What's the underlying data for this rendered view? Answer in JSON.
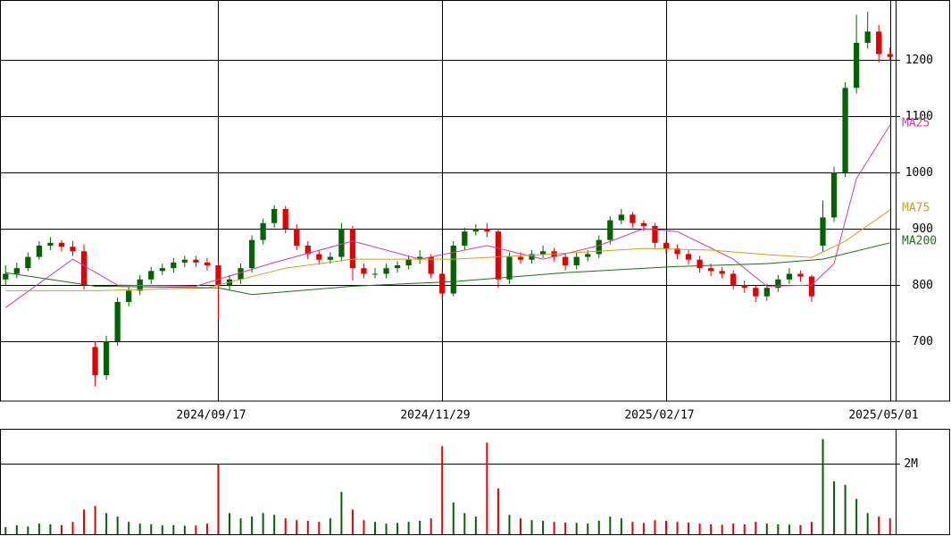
{
  "chart_data": [
    {
      "type": "candlestick",
      "xlim": [
        -0.5,
        79.5
      ],
      "xticks": [
        {
          "value": 19,
          "label": "2024/09/17"
        },
        {
          "value": 39,
          "label": "2024/11/29"
        },
        {
          "value": 59,
          "label": "2025/02/17"
        },
        {
          "value": 79,
          "label": "2025/05/01"
        }
      ],
      "ylim": [
        594,
        1306
      ],
      "yticks": [
        700,
        800,
        900,
        1000,
        1100,
        1200
      ],
      "grid": true,
      "up_color": "#006400",
      "down_color": "#e60000",
      "ohlc": [
        [
          810,
          835,
          800,
          820
        ],
        [
          820,
          840,
          812,
          830
        ],
        [
          830,
          858,
          825,
          850
        ],
        [
          850,
          878,
          845,
          870
        ],
        [
          870,
          885,
          862,
          875
        ],
        [
          875,
          880,
          860,
          868
        ],
        [
          868,
          878,
          852,
          860
        ],
        [
          860,
          872,
          792,
          800
        ],
        [
          690,
          700,
          620,
          640
        ],
        [
          640,
          710,
          632,
          700
        ],
        [
          700,
          778,
          692,
          770
        ],
        [
          770,
          798,
          762,
          790
        ],
        [
          790,
          818,
          782,
          810
        ],
        [
          810,
          832,
          802,
          825
        ],
        [
          825,
          838,
          818,
          830
        ],
        [
          830,
          848,
          822,
          840
        ],
        [
          840,
          852,
          832,
          845
        ],
        [
          845,
          852,
          832,
          840
        ],
        [
          840,
          848,
          826,
          835
        ],
        [
          835,
          842,
          740,
          800
        ],
        [
          800,
          818,
          790,
          810
        ],
        [
          810,
          838,
          802,
          830
        ],
        [
          830,
          888,
          822,
          880
        ],
        [
          880,
          918,
          872,
          910
        ],
        [
          910,
          942,
          902,
          935
        ],
        [
          935,
          940,
          892,
          900
        ],
        [
          900,
          908,
          862,
          870
        ],
        [
          870,
          878,
          846,
          855
        ],
        [
          855,
          862,
          836,
          845
        ],
        [
          845,
          858,
          838,
          850
        ],
        [
          850,
          910,
          842,
          900
        ],
        [
          900,
          905,
          808,
          830
        ],
        [
          830,
          838,
          812,
          820
        ],
        [
          820,
          830,
          812,
          820
        ],
        [
          820,
          838,
          812,
          830
        ],
        [
          830,
          842,
          822,
          835
        ],
        [
          835,
          852,
          828,
          845
        ],
        [
          845,
          862,
          838,
          850
        ],
        [
          850,
          855,
          812,
          820
        ],
        [
          820,
          826,
          775,
          785
        ],
        [
          785,
          878,
          780,
          870
        ],
        [
          870,
          902,
          862,
          895
        ],
        [
          895,
          908,
          888,
          900
        ],
        [
          900,
          910,
          885,
          895
        ],
        [
          895,
          900,
          795,
          810
        ],
        [
          810,
          858,
          802,
          850
        ],
        [
          850,
          858,
          838,
          845
        ],
        [
          845,
          862,
          838,
          855
        ],
        [
          855,
          870,
          848,
          860
        ],
        [
          860,
          866,
          842,
          850
        ],
        [
          850,
          856,
          826,
          835
        ],
        [
          835,
          858,
          828,
          850
        ],
        [
          850,
          862,
          842,
          855
        ],
        [
          855,
          888,
          848,
          880
        ],
        [
          880,
          922,
          872,
          915
        ],
        [
          915,
          935,
          908,
          925
        ],
        [
          925,
          930,
          902,
          910
        ],
        [
          910,
          915,
          896,
          905
        ],
        [
          905,
          910,
          866,
          875
        ],
        [
          875,
          880,
          856,
          865
        ],
        [
          865,
          872,
          846,
          855
        ],
        [
          855,
          862,
          836,
          845
        ],
        [
          845,
          852,
          822,
          830
        ],
        [
          830,
          838,
          816,
          825
        ],
        [
          825,
          832,
          812,
          820
        ],
        [
          820,
          826,
          792,
          800
        ],
        [
          800,
          808,
          786,
          795
        ],
        [
          795,
          800,
          770,
          780
        ],
        [
          780,
          802,
          772,
          795
        ],
        [
          795,
          818,
          788,
          810
        ],
        [
          810,
          830,
          802,
          820
        ],
        [
          820,
          826,
          806,
          815
        ],
        [
          815,
          818,
          770,
          780
        ],
        [
          870,
          950,
          860,
          920
        ],
        [
          920,
          1010,
          912,
          1000
        ],
        [
          1000,
          1160,
          992,
          1150
        ],
        [
          1150,
          1280,
          1140,
          1230
        ],
        [
          1230,
          1285,
          1220,
          1250
        ],
        [
          1250,
          1262,
          1195,
          1210
        ],
        [
          1210,
          1222,
          1198,
          1205
        ]
      ],
      "series": [
        {
          "name": "MA25",
          "color": "#d63ca0",
          "x": [
            0,
            6,
            10,
            17,
            24,
            31,
            37,
            43,
            48,
            53,
            57,
            60,
            65,
            68,
            72,
            74,
            76,
            79
          ],
          "values": [
            760,
            846,
            800,
            798,
            840,
            878,
            846,
            870,
            846,
            870,
            900,
            895,
            846,
            798,
            800,
            838,
            989,
            1084
          ]
        },
        {
          "name": "MA75",
          "color": "#d4a017",
          "x": [
            0,
            8,
            18,
            25,
            31,
            40,
            48,
            57,
            63,
            68,
            72,
            75,
            79
          ],
          "values": [
            790,
            790,
            795,
            830,
            846,
            846,
            854,
            865,
            862,
            854,
            849,
            878,
            933
          ]
        },
        {
          "name": "MA200",
          "color": "#1f6b1f",
          "x": [
            0,
            8,
            19,
            22,
            31,
            40,
            50,
            60,
            68,
            73,
            79
          ],
          "values": [
            822,
            798,
            795,
            783,
            798,
            806,
            822,
            833,
            838,
            846,
            875
          ]
        }
      ]
    },
    {
      "type": "bar",
      "xlim": [
        -0.5,
        79.5
      ],
      "ylim": [
        0,
        2990000
      ],
      "yticks": [
        {
          "value": 2000000,
          "label": "2M"
        }
      ],
      "grid": true,
      "values": [
        200000,
        250000,
        220000,
        300000,
        280000,
        260000,
        350000,
        700000,
        800000,
        600000,
        500000,
        350000,
        300000,
        280000,
        250000,
        260000,
        240000,
        250000,
        300000,
        2000000,
        600000,
        450000,
        500000,
        600000,
        550000,
        450000,
        400000,
        380000,
        350000,
        450000,
        1200000,
        700000,
        400000,
        350000,
        300000,
        320000,
        350000,
        380000,
        450000,
        2500000,
        900000,
        600000,
        500000,
        2600000,
        1300000,
        550000,
        450000,
        400000,
        380000,
        350000,
        330000,
        320000,
        300000,
        380000,
        500000,
        450000,
        350000,
        320000,
        400000,
        380000,
        350000,
        330000,
        300000,
        280000,
        270000,
        300000,
        280000,
        350000,
        300000,
        280000,
        270000,
        260000,
        350000,
        2700000,
        1500000,
        1400000,
        1000000,
        600000,
        500000,
        450000
      ]
    }
  ]
}
